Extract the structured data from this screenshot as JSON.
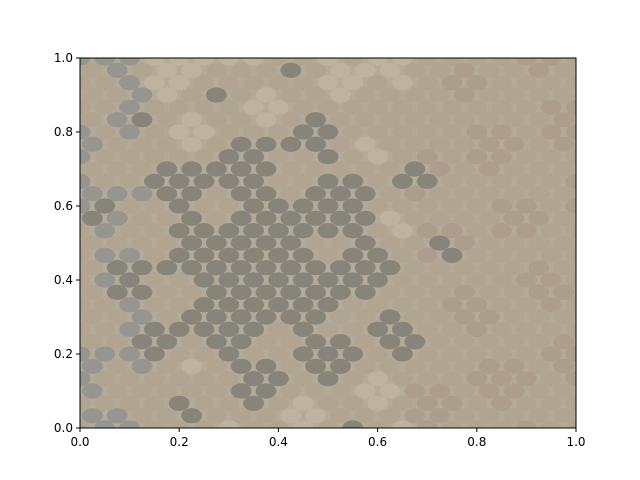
{
  "chart_data": {
    "type": "scatter",
    "title": "",
    "xlabel": "",
    "ylabel": "",
    "xlim": [
      0,
      1
    ],
    "ylim": [
      0,
      1
    ],
    "grid": false,
    "legend": "none",
    "x_ticks": [
      "0.0",
      "0.2",
      "0.4",
      "0.6",
      "0.8",
      "1.0"
    ],
    "y_ticks": [
      "0.0",
      "0.2",
      "0.4",
      "0.6",
      "0.8",
      "1.0"
    ],
    "marker": "ellipse",
    "marker_alpha": 0.5,
    "grid_columns": 20,
    "grid_rows": 30,
    "x_range": [
      0,
      1
    ],
    "y_range": [
      0,
      1
    ],
    "palette": {
      "light": "#c8bca8",
      "tan": "#b0a08c",
      "dark": "#5c5e5a",
      "slate": "#7a8088",
      "warm": "#a89080"
    }
  }
}
